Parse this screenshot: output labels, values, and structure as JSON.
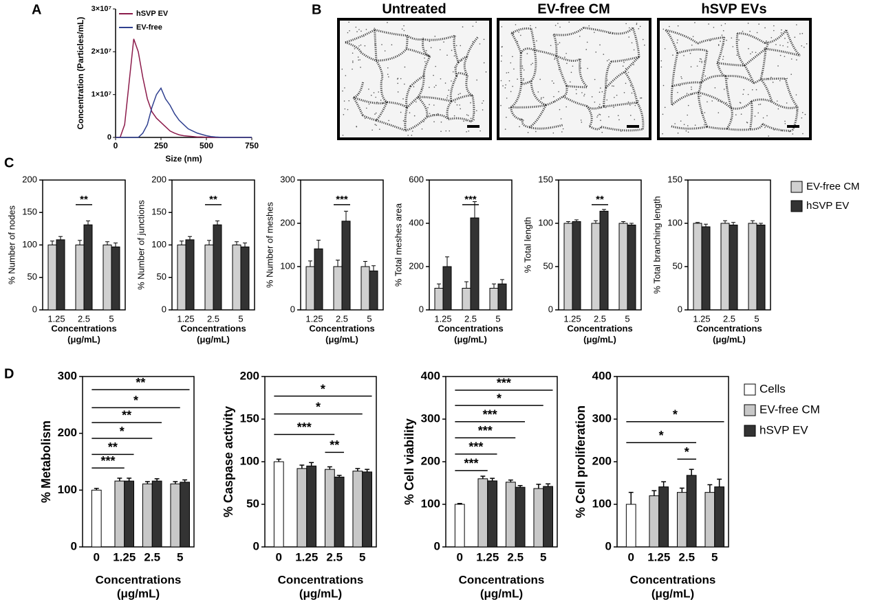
{
  "panel_labels": [
    "A",
    "B",
    "C",
    "D"
  ],
  "images": {
    "titles": [
      "Untreated",
      "EV-free CM",
      "hSVP EVs"
    ]
  },
  "chart_data": [
    {
      "type": "line",
      "xlabel": "Size (nm)",
      "ylabel": "Concentration (Particles/mL)",
      "x": [
        0,
        25,
        50,
        75,
        100,
        125,
        150,
        175,
        200,
        225,
        250,
        275,
        300,
        325,
        350,
        375,
        400,
        425,
        450,
        475,
        500,
        525,
        550,
        575,
        600,
        625,
        650,
        675,
        700,
        725,
        750
      ],
      "series": [
        {
          "name": "hSVP EV",
          "color": "#8b1a4a",
          "values": [
            0,
            0,
            3000000,
            13000000,
            23000000,
            20000000,
            14000000,
            9000000,
            6000000,
            4500000,
            3500000,
            2500000,
            1500000,
            1000000,
            600000,
            400000,
            300000,
            200000,
            100000,
            100000,
            50000,
            0,
            0,
            0,
            0,
            0,
            0,
            0,
            0,
            0,
            0
          ]
        },
        {
          "name": "EV-free",
          "color": "#2e3f8f",
          "values": [
            0,
            0,
            0,
            0,
            0,
            0,
            1000000,
            3000000,
            7000000,
            10000000,
            11500000,
            9000000,
            7500000,
            5500000,
            4000000,
            3000000,
            2000000,
            1500000,
            1000000,
            700000,
            400000,
            200000,
            100000,
            50000,
            0,
            0,
            0,
            0,
            0,
            0,
            0
          ]
        }
      ],
      "xlim": [
        0,
        750
      ],
      "xticks": [
        0,
        250,
        500,
        750
      ],
      "ylim": [
        0,
        30000000
      ],
      "yticks": [
        0,
        {
          "value": 10000000,
          "label": "1×10⁷"
        },
        {
          "value": 20000000,
          "label": "2×10⁷"
        },
        {
          "value": 30000000,
          "label": "3×10⁷"
        }
      ],
      "legend": "upper left"
    },
    {
      "type": "bar",
      "ylabel": "% Number of nodes",
      "xlabel": [
        "Concentrations",
        "(μg/mL)"
      ],
      "categories": [
        "1.25",
        "2.5",
        "5"
      ],
      "series": [
        {
          "name": "EV-free CM",
          "color": "#d0d0d0",
          "values": [
            100,
            100,
            100
          ],
          "errors": [
            6,
            7,
            5
          ]
        },
        {
          "name": "hSVP EV",
          "color": "#333333",
          "values": [
            108,
            131,
            97
          ],
          "errors": [
            5,
            6,
            6
          ]
        }
      ],
      "ylim": [
        0,
        200
      ],
      "yticks": [
        0,
        50,
        100,
        150,
        200
      ],
      "annotations": [
        "**"
      ]
    },
    {
      "type": "bar",
      "ylabel": "% Number of junctions",
      "xlabel": [
        "Concentrations",
        "(μg/mL)"
      ],
      "categories": [
        "1.25",
        "2.5",
        "5"
      ],
      "series": [
        {
          "name": "EV-free CM",
          "color": "#d0d0d0",
          "values": [
            100,
            100,
            100
          ],
          "errors": [
            6,
            7,
            5
          ]
        },
        {
          "name": "hSVP EV",
          "color": "#333333",
          "values": [
            108,
            131,
            97
          ],
          "errors": [
            5,
            6,
            6
          ]
        }
      ],
      "ylim": [
        0,
        200
      ],
      "yticks": [
        0,
        50,
        100,
        150,
        200
      ],
      "annotations": [
        "**"
      ]
    },
    {
      "type": "bar",
      "ylabel": "% Number of meshes",
      "xlabel": [
        "Concentrations",
        "(μg/mL)"
      ],
      "categories": [
        "1.25",
        "2.5",
        "5"
      ],
      "series": [
        {
          "name": "EV-free CM",
          "color": "#d0d0d0",
          "values": [
            100,
            100,
            100
          ],
          "errors": [
            13,
            15,
            12
          ]
        },
        {
          "name": "hSVP EV",
          "color": "#333333",
          "values": [
            141,
            205,
            90
          ],
          "errors": [
            20,
            23,
            12
          ]
        }
      ],
      "ylim": [
        0,
        300
      ],
      "yticks": [
        0,
        100,
        200,
        300
      ],
      "annotations": [
        "***"
      ]
    },
    {
      "type": "bar",
      "ylabel": "% Total meshes area",
      "xlabel": [
        "Concentrations",
        "(μg/mL)"
      ],
      "categories": [
        "1.25",
        "2.5",
        "5"
      ],
      "series": [
        {
          "name": "EV-free CM",
          "color": "#d0d0d0",
          "values": [
            100,
            100,
            100
          ],
          "errors": [
            20,
            30,
            20
          ]
        },
        {
          "name": "hSVP EV",
          "color": "#333333",
          "values": [
            200,
            425,
            120
          ],
          "errors": [
            45,
            75,
            20
          ]
        }
      ],
      "ylim": [
        0,
        600
      ],
      "yticks": [
        0,
        200,
        400,
        600
      ],
      "annotations": [
        "***"
      ]
    },
    {
      "type": "bar",
      "ylabel": "% Total length",
      "xlabel": [
        "Concentrations",
        "(μg/mL)"
      ],
      "categories": [
        "1.25",
        "2.5",
        "5"
      ],
      "series": [
        {
          "name": "EV-free CM",
          "color": "#d0d0d0",
          "values": [
            100,
            100,
            100
          ],
          "errors": [
            2,
            3,
            2
          ]
        },
        {
          "name": "hSVP EV",
          "color": "#333333",
          "values": [
            102,
            114,
            98
          ],
          "errors": [
            2,
            2,
            2
          ]
        }
      ],
      "ylim": [
        0,
        150
      ],
      "yticks": [
        0,
        50,
        100,
        150
      ],
      "annotations": [
        "**"
      ]
    },
    {
      "type": "bar",
      "ylabel": "% Total branching length",
      "xlabel": [
        "Concentrations",
        "(μg/mL)"
      ],
      "categories": [
        "1.25",
        "2.5",
        "5"
      ],
      "series": [
        {
          "name": "EV-free CM",
          "color": "#d0d0d0",
          "values": [
            100,
            100,
            100
          ],
          "errors": [
            1,
            3,
            3
          ]
        },
        {
          "name": "hSVP EV",
          "color": "#333333",
          "values": [
            96,
            98,
            98
          ],
          "errors": [
            3,
            3,
            2
          ]
        }
      ],
      "ylim": [
        0,
        150
      ],
      "yticks": [
        0,
        50,
        100,
        150
      ],
      "annotations": [],
      "legend": "right"
    },
    {
      "type": "bar",
      "ylabel": "% Metabolism",
      "xlabel": [
        "Concentrations",
        "(μg/mL)"
      ],
      "categories": [
        "0",
        "1.25",
        "2.5",
        "5"
      ],
      "series": [
        {
          "name": "Cells",
          "color": "#ffffff",
          "values": [
            100,
            null,
            null,
            null
          ],
          "errors": [
            3,
            null,
            null,
            null
          ]
        },
        {
          "name": "EV-free CM",
          "color": "#c8c8c8",
          "values": [
            null,
            116,
            111,
            111
          ],
          "errors": [
            null,
            5,
            4,
            4
          ]
        },
        {
          "name": "hSVP EV",
          "color": "#333333",
          "values": [
            null,
            116,
            116,
            114
          ],
          "errors": [
            null,
            5,
            4,
            4
          ]
        }
      ],
      "ylim": [
        0,
        300
      ],
      "yticks": [
        0,
        100,
        200,
        300
      ],
      "annotations": [
        "**",
        "*",
        "**",
        "*",
        "**",
        "***"
      ]
    },
    {
      "type": "bar",
      "ylabel": "% Caspase activity",
      "xlabel": [
        "Concentrations",
        "(μg/mL)"
      ],
      "categories": [
        "0",
        "1.25",
        "2.5",
        "5"
      ],
      "series": [
        {
          "name": "Cells",
          "color": "#ffffff",
          "values": [
            100,
            null,
            null,
            null
          ],
          "errors": [
            3,
            null,
            null,
            null
          ]
        },
        {
          "name": "EV-free CM",
          "color": "#c8c8c8",
          "values": [
            null,
            92,
            91,
            89
          ],
          "errors": [
            null,
            4,
            3,
            3
          ]
        },
        {
          "name": "hSVP EV",
          "color": "#333333",
          "values": [
            null,
            95,
            82,
            88
          ],
          "errors": [
            null,
            4,
            2,
            3
          ]
        }
      ],
      "ylim": [
        0,
        200
      ],
      "yticks": [
        0,
        50,
        100,
        150,
        200
      ],
      "annotations": [
        "*",
        "*",
        "***",
        "**"
      ]
    },
    {
      "type": "bar",
      "ylabel": "% Cell viability",
      "xlabel": [
        "Concentrations",
        "(μg/mL)"
      ],
      "categories": [
        "0",
        "1.25",
        "2.5",
        "5"
      ],
      "series": [
        {
          "name": "Cells",
          "color": "#ffffff",
          "values": [
            100,
            null,
            null,
            null
          ],
          "errors": [
            2,
            null,
            null,
            null
          ]
        },
        {
          "name": "EV-free CM",
          "color": "#c8c8c8",
          "values": [
            null,
            160,
            152,
            137
          ],
          "errors": [
            null,
            6,
            5,
            10
          ]
        },
        {
          "name": "hSVP EV",
          "color": "#333333",
          "values": [
            null,
            155,
            140,
            142
          ],
          "errors": [
            null,
            6,
            4,
            6
          ]
        }
      ],
      "ylim": [
        0,
        400
      ],
      "yticks": [
        0,
        100,
        200,
        300,
        400
      ],
      "annotations": [
        "***",
        "*",
        "***",
        "***",
        "***",
        "***"
      ]
    },
    {
      "type": "bar",
      "ylabel": "% Cell proliferation",
      "xlabel": [
        "Concentrations",
        "(μg/mL)"
      ],
      "categories": [
        "0",
        "1.25",
        "2.5",
        "5"
      ],
      "series": [
        {
          "name": "Cells",
          "color": "#ffffff",
          "values": [
            100,
            null,
            null,
            null
          ],
          "errors": [
            28,
            null,
            null,
            null
          ]
        },
        {
          "name": "EV-free CM",
          "color": "#c8c8c8",
          "values": [
            null,
            120,
            128,
            128
          ],
          "errors": [
            null,
            12,
            10,
            18
          ]
        },
        {
          "name": "hSVP EV",
          "color": "#333333",
          "values": [
            null,
            141,
            168,
            141
          ],
          "errors": [
            null,
            12,
            14,
            18
          ]
        }
      ],
      "ylim": [
        0,
        400
      ],
      "yticks": [
        0,
        100,
        200,
        300,
        400
      ],
      "annotations": [
        "*",
        "*",
        "*"
      ],
      "legend": "right"
    }
  ]
}
